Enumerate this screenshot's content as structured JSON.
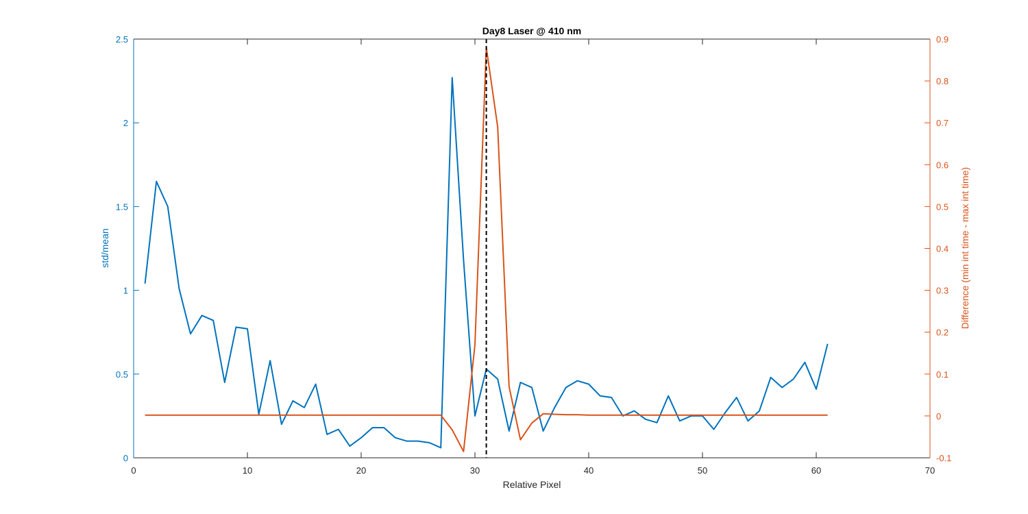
{
  "chart_data": {
    "type": "line",
    "title": "Day8 Laser @ 410 nm",
    "xlabel": "Relative Pixel",
    "ylabel_left": "std/mean",
    "ylabel_right": "Difference (min int time - max int time)",
    "xlim": [
      0,
      70
    ],
    "ylim_left": [
      0,
      2.5
    ],
    "ylim_right": [
      -0.1,
      0.9
    ],
    "xticks": [
      "0",
      "10",
      "20",
      "30",
      "40",
      "50",
      "60",
      "70"
    ],
    "yticks_left": [
      "0",
      "0.5",
      "1",
      "1.5",
      "2",
      "2.5"
    ],
    "yticks_right": [
      "-0.1",
      "0",
      "0.1",
      "0.2",
      "0.3",
      "0.4",
      "0.5",
      "0.6",
      "0.7",
      "0.8",
      "0.9"
    ],
    "grid": false,
    "colors": {
      "left": "#0072BD",
      "right": "#D95319",
      "marker": "#000000",
      "axes": "#262626"
    },
    "series": [
      {
        "axis": "left",
        "color": "#0072BD",
        "x": [
          1,
          2,
          3,
          4,
          5,
          6,
          7,
          8,
          9,
          10,
          11,
          12,
          13,
          14,
          15,
          16,
          17,
          18,
          19,
          20,
          21,
          22,
          23,
          24,
          25,
          26,
          27,
          28,
          29,
          30,
          31,
          32,
          33,
          34,
          35,
          36,
          37,
          38,
          39,
          40,
          41,
          42,
          43,
          44,
          45,
          46,
          47,
          48,
          49,
          50,
          51,
          52,
          53,
          54,
          55,
          56,
          57,
          58,
          59,
          60,
          61
        ],
        "values": [
          1.04,
          1.65,
          1.5,
          1.01,
          0.74,
          0.85,
          0.82,
          0.45,
          0.78,
          0.77,
          0.26,
          0.58,
          0.2,
          0.34,
          0.3,
          0.44,
          0.14,
          0.17,
          0.07,
          0.12,
          0.18,
          0.18,
          0.12,
          0.1,
          0.1,
          0.09,
          0.06,
          2.27,
          1.18,
          0.25,
          0.53,
          0.47,
          0.16,
          0.45,
          0.42,
          0.16,
          0.3,
          0.42,
          0.46,
          0.44,
          0.37,
          0.36,
          0.25,
          0.28,
          0.23,
          0.21,
          0.37,
          0.22,
          0.25,
          0.25,
          0.17,
          0.27,
          0.36,
          0.22,
          0.28,
          0.48,
          0.42,
          0.47,
          0.57,
          0.41,
          0.68
        ]
      },
      {
        "axis": "right",
        "color": "#D95319",
        "x": [
          1,
          2,
          3,
          4,
          5,
          6,
          7,
          8,
          9,
          10,
          11,
          12,
          13,
          14,
          15,
          16,
          17,
          18,
          19,
          20,
          21,
          22,
          23,
          24,
          25,
          26,
          27,
          28,
          29,
          30,
          31,
          32,
          33,
          34,
          35,
          36,
          37,
          38,
          39,
          40,
          41,
          42,
          43,
          44,
          45,
          46,
          47,
          48,
          49,
          50,
          51,
          52,
          53,
          54,
          55,
          56,
          57,
          58,
          59,
          60,
          61
        ],
        "values": [
          0.002,
          0.002,
          0.002,
          0.002,
          0.002,
          0.002,
          0.002,
          0.002,
          0.002,
          0.002,
          0.002,
          0.002,
          0.002,
          0.002,
          0.002,
          0.002,
          0.002,
          0.002,
          0.002,
          0.002,
          0.002,
          0.002,
          0.002,
          0.002,
          0.002,
          0.002,
          0.002,
          -0.033,
          -0.085,
          0.17,
          0.88,
          0.69,
          0.07,
          -0.057,
          -0.017,
          0.005,
          0.004,
          0.003,
          0.003,
          0.002,
          0.002,
          0.002,
          0.002,
          0.002,
          0.002,
          0.002,
          0.002,
          0.002,
          0.002,
          0.002,
          0.002,
          0.002,
          0.002,
          0.002,
          0.002,
          0.002,
          0.002,
          0.002,
          0.002,
          0.002,
          0.002
        ]
      }
    ],
    "vline_x": 31
  }
}
